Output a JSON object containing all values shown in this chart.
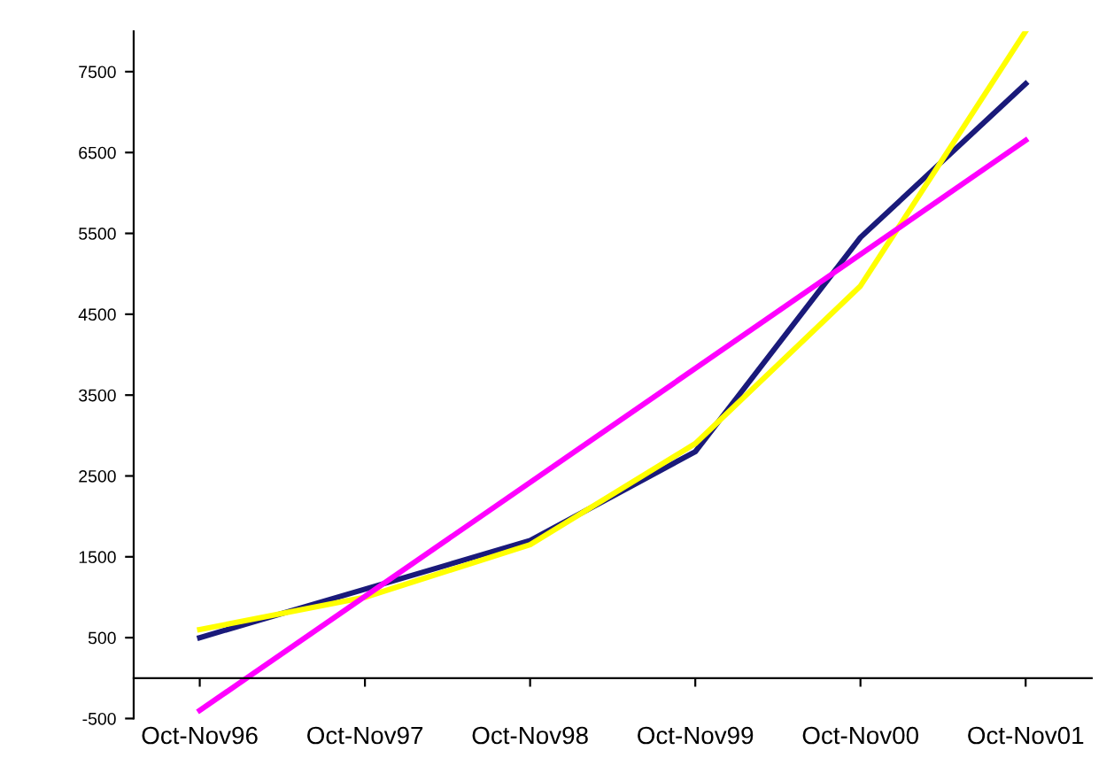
{
  "chart_data": {
    "type": "line",
    "categories": [
      "Oct-Nov96",
      "Oct-Nov97",
      "Oct-Nov98",
      "Oct-Nov99",
      "Oct-Nov00",
      "Oct-Nov01"
    ],
    "series": [
      {
        "color": "#1a1a7a",
        "values": [
          500,
          1100,
          1700,
          2800,
          5450,
          7350
        ]
      },
      {
        "color": "#ffff00",
        "values": [
          600,
          1000,
          1650,
          2900,
          4850,
          8000
        ]
      },
      {
        "color": "#ff00ff",
        "values": [
          -400,
          null,
          null,
          null,
          null,
          6650
        ]
      }
    ],
    "ylim": [
      -500,
      8000
    ],
    "yticks": [
      -500,
      500,
      1500,
      2500,
      3500,
      4500,
      5500,
      6500,
      7500
    ],
    "grid": false,
    "legend": false,
    "marker": "none",
    "line_style": "solid"
  }
}
